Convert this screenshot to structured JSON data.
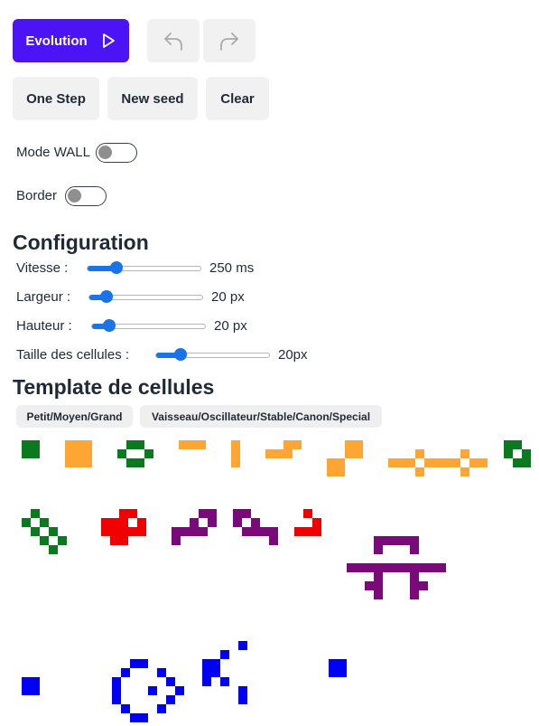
{
  "buttons": {
    "evolution": "Evolution",
    "one_step": "One Step",
    "new_seed": "New seed",
    "clear": "Clear"
  },
  "toggles": {
    "mode_wall": {
      "label": "Mode WALL",
      "on": false
    },
    "border": {
      "label": "Border",
      "on": false
    }
  },
  "config": {
    "title": "Configuration",
    "vitesse": {
      "label": "Vitesse :",
      "value": "250 ms"
    },
    "largeur": {
      "label": "Largeur :",
      "value": "20 px"
    },
    "hauteur": {
      "label": "Hauteur :",
      "value": "20 px"
    },
    "taille": {
      "label": "Taille des cellules :",
      "value": "20px"
    }
  },
  "templates": {
    "title": "Template de cellules",
    "tags": [
      "Petit/Moyen/Grand",
      "Vaisseau/Oscillateur/Stable/Canon/Special"
    ]
  },
  "colors": {
    "accent": "#4b14f5",
    "green": "#0b7a1f",
    "orange": "#ffa534",
    "red": "#f00000",
    "purple": "#7a0a7a",
    "blue": "#0000f5"
  }
}
